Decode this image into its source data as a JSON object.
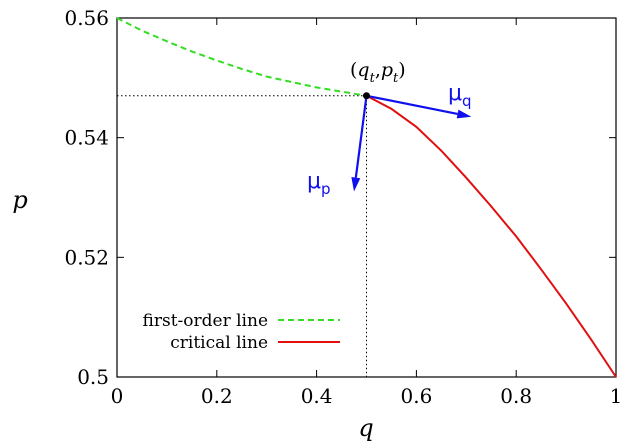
{
  "chart_data": {
    "type": "line",
    "xlabel": "q",
    "ylabel": "p",
    "xlim": [
      0,
      1
    ],
    "ylim": [
      0.5,
      0.56
    ],
    "x_ticks": [
      "0",
      "0.2",
      "0.4",
      "0.6",
      "0.8",
      "1"
    ],
    "y_ticks": [
      "0.5",
      "0.52",
      "0.54",
      "0.56"
    ],
    "x_tick_values": [
      0,
      0.2,
      0.4,
      0.6,
      0.8,
      1
    ],
    "y_tick_values": [
      0.5,
      0.52,
      0.54,
      0.56
    ],
    "grid": false,
    "legend_position": "bottom-left",
    "series": [
      {
        "name": "first-order line",
        "style": "dashed",
        "color": "#33dd22",
        "x": [
          0,
          0.05,
          0.1,
          0.15,
          0.2,
          0.25,
          0.3,
          0.35,
          0.4,
          0.45,
          0.5
        ],
        "y": [
          0.56,
          0.5579,
          0.5561,
          0.5544,
          0.5529,
          0.5515,
          0.5502,
          0.5493,
          0.5484,
          0.5477,
          0.547
        ]
      },
      {
        "name": "critical line",
        "style": "solid",
        "color": "#e01010",
        "x": [
          0.5,
          0.55,
          0.6,
          0.65,
          0.7,
          0.75,
          0.8,
          0.85,
          0.9,
          0.95,
          1
        ],
        "y": [
          0.547,
          0.5448,
          0.5418,
          0.5378,
          0.5333,
          0.5285,
          0.5235,
          0.518,
          0.5123,
          0.5063,
          0.5
        ]
      }
    ],
    "tricritical_point": {
      "x": 0.5,
      "y": 0.547,
      "label": "(q_t, p_t)"
    },
    "vectors": [
      {
        "name": "μ_q",
        "base": "μ",
        "sub": "q",
        "from": [
          0.5,
          0.547
        ],
        "to": [
          0.71,
          0.5435
        ],
        "color": "#1010ee"
      },
      {
        "name": "μ_p",
        "base": "μ",
        "sub": "p",
        "from": [
          0.5,
          0.547
        ],
        "to": [
          0.475,
          0.531
        ],
        "color": "#1010ee"
      }
    ]
  }
}
